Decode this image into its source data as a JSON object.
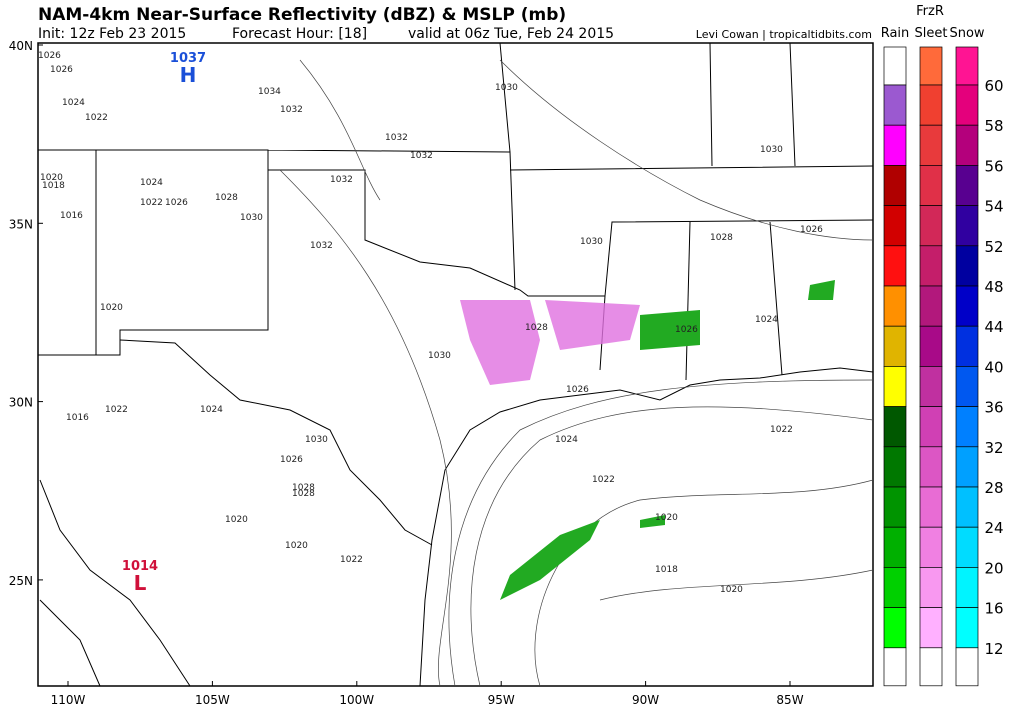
{
  "header": {
    "title": "NAM-4km Near-Surface Reflectivity (dBZ) & MSLP (mb)",
    "init": "Init: 12z Feb 23 2015",
    "forecast_hour": "Forecast Hour: [18]",
    "valid": "valid at 06z Tue, Feb 24 2015",
    "credit": "Levi Cowan | tropicaltidbits.com"
  },
  "map": {
    "lat_labels": [
      "40N",
      "35N",
      "30N",
      "25N"
    ],
    "lon_labels": [
      "110W",
      "105W",
      "100W",
      "95W",
      "90W",
      "85W"
    ],
    "isobar_labels": [
      "1026",
      "1026",
      "1024",
      "1022",
      "1032",
      "1034",
      "1030",
      "1032",
      "1032",
      "1030",
      "1020",
      "1018",
      "1016",
      "1024",
      "1022",
      "1026",
      "1028",
      "1030",
      "1032",
      "1032",
      "1030",
      "1028",
      "1026",
      "1024",
      "1024",
      "1022",
      "1026",
      "1028",
      "1030",
      "1022",
      "1020",
      "1018",
      "1020",
      "1020",
      "1016",
      "1022",
      "1024",
      "1028",
      "1020",
      "1020",
      "1022",
      "1026",
      "1028",
      "1030",
      "1026"
    ],
    "centers": [
      {
        "value": "1037",
        "letter": "H",
        "color": "#1a4fd8"
      },
      {
        "value": "1014",
        "letter": "L",
        "color": "#d0103a"
      }
    ]
  },
  "legend": {
    "header": "FrzR",
    "columns": [
      {
        "name": "Rain",
        "colors": [
          "#ffffff",
          "#9b59d0",
          "#ff00ff",
          "#b00000",
          "#d20000",
          "#ff1010",
          "#ff9000",
          "#e0b400",
          "#ffff00",
          "#005800",
          "#007800",
          "#009400",
          "#00b000",
          "#00d000",
          "#00ff00",
          "#ffffff"
        ]
      },
      {
        "name": "Sleet",
        "colors": [
          "#ff6a3a",
          "#f04030",
          "#e83a3c",
          "#e03048",
          "#d22858",
          "#c41e6a",
          "#b2187c",
          "#a80a88",
          "#c030a0",
          "#d040b4",
          "#dc56c4",
          "#e86cd4",
          "#f080e2",
          "#f898f0",
          "#ffb0ff",
          "#ffffff"
        ]
      },
      {
        "name": "Snow",
        "colors": [
          "#ff1493",
          "#e4007c",
          "#b4007c",
          "#580090",
          "#3000a0",
          "#0000a0",
          "#0000c8",
          "#0030e0",
          "#0058f0",
          "#0080ff",
          "#00a0ff",
          "#00c0ff",
          "#00dcff",
          "#00f4ff",
          "#00ffff",
          "#ffffff"
        ]
      }
    ],
    "levels": [
      60,
      58,
      56,
      54,
      52,
      48,
      44,
      40,
      36,
      32,
      28,
      24,
      20,
      16,
      12
    ]
  }
}
